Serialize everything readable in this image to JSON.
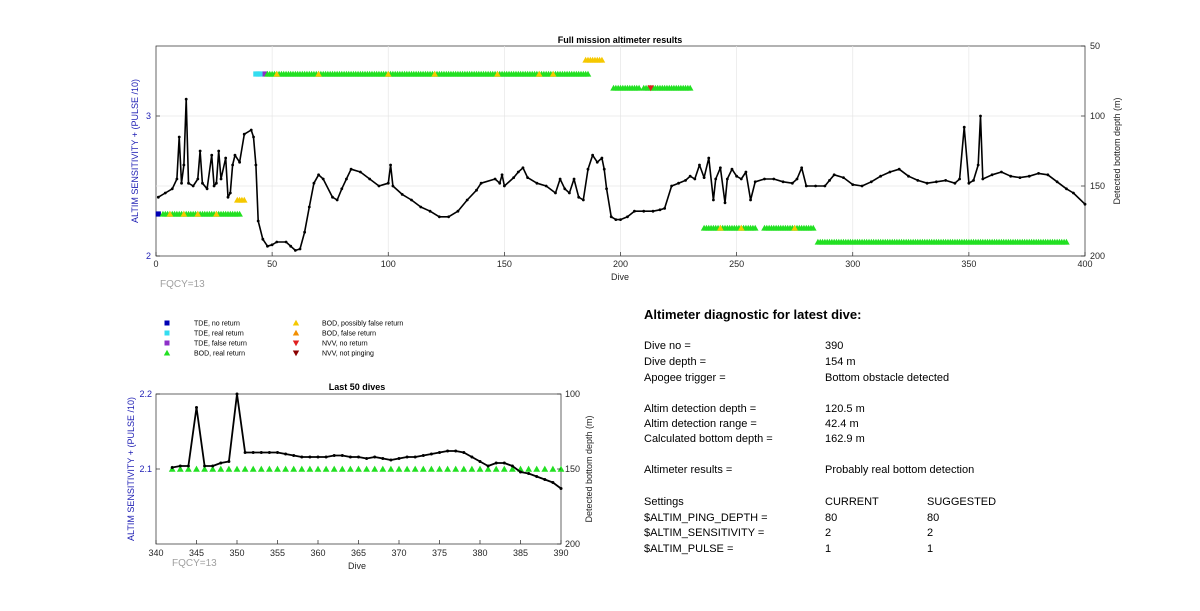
{
  "chart_data": [
    {
      "type": "line",
      "title": "Full mission altimeter results",
      "xlabel": "Dive",
      "ylabel_left": "ALTIM SENSITIVITY + (PULSE /10)",
      "ylabel_right": "Detected bottom depth (m)",
      "xlim": [
        0,
        400
      ],
      "ylim_left": [
        2,
        3.5
      ],
      "ylim_right": [
        50,
        200
      ],
      "right_axis_reversed": true,
      "xticks": [
        "0",
        "50",
        "100",
        "150",
        "200",
        "250",
        "300",
        "350",
        "400"
      ],
      "yticks_left": [
        "2",
        "3"
      ],
      "yticks_right": [
        "50",
        "100",
        "150",
        "200"
      ],
      "grid": true,
      "annotation": "FQCY=13",
      "depth_series_keypoints": [
        [
          1,
          158
        ],
        [
          4,
          155
        ],
        [
          7,
          152
        ],
        [
          9,
          145
        ],
        [
          10,
          115
        ],
        [
          11,
          148
        ],
        [
          12,
          135
        ],
        [
          13,
          88
        ],
        [
          14,
          148
        ],
        [
          16,
          150
        ],
        [
          18,
          145
        ],
        [
          19,
          125
        ],
        [
          20,
          148
        ],
        [
          22,
          152
        ],
        [
          24,
          128
        ],
        [
          25,
          150
        ],
        [
          26,
          148
        ],
        [
          27,
          125
        ],
        [
          28,
          145
        ],
        [
          30,
          130
        ],
        [
          31,
          158
        ],
        [
          32,
          155
        ],
        [
          33,
          135
        ],
        [
          34,
          128
        ],
        [
          36,
          133
        ],
        [
          38,
          113
        ],
        [
          41,
          110
        ],
        [
          42,
          115
        ],
        [
          43,
          135
        ],
        [
          44,
          175
        ],
        [
          46,
          188
        ],
        [
          48,
          193
        ],
        [
          50,
          192
        ],
        [
          52,
          190
        ],
        [
          56,
          190
        ],
        [
          58,
          193
        ],
        [
          60,
          196
        ],
        [
          62,
          195
        ],
        [
          64,
          183
        ],
        [
          66,
          165
        ],
        [
          68,
          148
        ],
        [
          70,
          142
        ],
        [
          72,
          145
        ],
        [
          76,
          158
        ],
        [
          78,
          160
        ],
        [
          80,
          152
        ],
        [
          82,
          145
        ],
        [
          84,
          138
        ],
        [
          88,
          140
        ],
        [
          92,
          145
        ],
        [
          96,
          150
        ],
        [
          100,
          148
        ],
        [
          101,
          135
        ],
        [
          102,
          150
        ],
        [
          106,
          156
        ],
        [
          110,
          160
        ],
        [
          114,
          165
        ],
        [
          118,
          168
        ],
        [
          122,
          172
        ],
        [
          126,
          172
        ],
        [
          130,
          168
        ],
        [
          134,
          160
        ],
        [
          138,
          153
        ],
        [
          140,
          148
        ],
        [
          146,
          145
        ],
        [
          148,
          148
        ],
        [
          149,
          142
        ],
        [
          150,
          150
        ],
        [
          154,
          144
        ],
        [
          156,
          140
        ],
        [
          158,
          137
        ],
        [
          160,
          144
        ],
        [
          164,
          148
        ],
        [
          168,
          150
        ],
        [
          172,
          155
        ],
        [
          174,
          145
        ],
        [
          176,
          152
        ],
        [
          178,
          155
        ],
        [
          180,
          145
        ],
        [
          182,
          158
        ],
        [
          184,
          160
        ],
        [
          186,
          138
        ],
        [
          188,
          128
        ],
        [
          190,
          133
        ],
        [
          192,
          130
        ],
        [
          193,
          138
        ],
        [
          194,
          152
        ],
        [
          196,
          172
        ],
        [
          198,
          174
        ],
        [
          200,
          174
        ],
        [
          203,
          172
        ],
        [
          206,
          168
        ],
        [
          210,
          168
        ],
        [
          214,
          168
        ],
        [
          217,
          167
        ],
        [
          219,
          166
        ],
        [
          222,
          150
        ],
        [
          225,
          148
        ],
        [
          228,
          146
        ],
        [
          230,
          143
        ],
        [
          232,
          145
        ],
        [
          234,
          135
        ],
        [
          236,
          144
        ],
        [
          238,
          130
        ],
        [
          240,
          160
        ],
        [
          241,
          145
        ],
        [
          243,
          137
        ],
        [
          245,
          162
        ],
        [
          246,
          145
        ],
        [
          248,
          138
        ],
        [
          250,
          143
        ],
        [
          252,
          145
        ],
        [
          254,
          140
        ],
        [
          256,
          160
        ],
        [
          258,
          147
        ],
        [
          262,
          145
        ],
        [
          266,
          145
        ],
        [
          270,
          147
        ],
        [
          274,
          148
        ],
        [
          276,
          145
        ],
        [
          278,
          137
        ],
        [
          280,
          150
        ],
        [
          284,
          150
        ],
        [
          288,
          150
        ],
        [
          290,
          146
        ],
        [
          292,
          142
        ],
        [
          296,
          144
        ],
        [
          300,
          149
        ],
        [
          304,
          150
        ],
        [
          308,
          147
        ],
        [
          312,
          143
        ],
        [
          316,
          140
        ],
        [
          320,
          138
        ],
        [
          324,
          143
        ],
        [
          328,
          146
        ],
        [
          332,
          148
        ],
        [
          336,
          147
        ],
        [
          340,
          146
        ],
        [
          344,
          148
        ],
        [
          346,
          145
        ],
        [
          348,
          108
        ],
        [
          350,
          148
        ],
        [
          352,
          146
        ],
        [
          354,
          135
        ],
        [
          355,
          100
        ],
        [
          356,
          145
        ],
        [
          360,
          142
        ],
        [
          364,
          140
        ],
        [
          368,
          143
        ],
        [
          372,
          144
        ],
        [
          376,
          143
        ],
        [
          380,
          141
        ],
        [
          384,
          142
        ],
        [
          388,
          147
        ],
        [
          392,
          152
        ],
        [
          395,
          155
        ],
        [
          400,
          163
        ]
      ],
      "markers": [
        {
          "type": "TDE, no return",
          "x": [
            1
          ],
          "y": [
            2.3
          ]
        },
        {
          "type": "TDE, real return",
          "x": [
            43,
            44,
            45
          ],
          "y": [
            3.3,
            3.3,
            3.3
          ]
        },
        {
          "type": "TDE, false return",
          "x": [
            47
          ],
          "y": [
            3.3
          ]
        },
        {
          "type": "BOD, real return",
          "runs": [
            [
              3,
              36,
              2.3
            ],
            [
              48,
              186,
              3.3
            ],
            [
              197,
              208,
              3.2
            ],
            [
              210,
              230,
              3.2
            ],
            [
              236,
              258,
              2.2
            ],
            [
              262,
              283,
              2.2
            ],
            [
              285,
              392,
              2.1
            ]
          ]
        },
        {
          "type": "BOD, possibly false return",
          "x": [
            35,
            36,
            37,
            38,
            185,
            186,
            187,
            188,
            189,
            190,
            191,
            192
          ],
          "y": [
            2.4,
            2.4,
            2.4,
            2.4,
            3.4,
            3.4,
            3.4,
            3.4,
            3.4,
            3.4,
            3.4,
            3.4
          ]
        },
        {
          "type": "NVV, no return",
          "x": [
            213
          ],
          "y": [
            3.2
          ]
        }
      ]
    },
    {
      "type": "line",
      "title": "Last 50 dives",
      "xlabel": "Dive",
      "ylabel_left": "ALTIM SENSITIVITY + (PULSE /10)",
      "ylabel_right": "Detected bottom depth (m)",
      "xlim": [
        340,
        390
      ],
      "ylim_left": [
        2.0,
        2.2
      ],
      "ylim_right": [
        100,
        200
      ],
      "right_axis_reversed": true,
      "xticks": [
        "340",
        "345",
        "350",
        "355",
        "360",
        "365",
        "370",
        "375",
        "380",
        "385",
        "390"
      ],
      "yticks_left": [
        "2.1",
        "2.2"
      ],
      "yticks_right": [
        "100",
        "150",
        "200"
      ],
      "annotation": "FQCY=13",
      "x": [
        342,
        343,
        344,
        345,
        346,
        347,
        348,
        349,
        350,
        351,
        352,
        353,
        354,
        355,
        356,
        357,
        358,
        359,
        360,
        361,
        362,
        363,
        364,
        365,
        366,
        367,
        368,
        369,
        370,
        371,
        372,
        373,
        374,
        375,
        376,
        377,
        378,
        379,
        380,
        381,
        382,
        383,
        384,
        385,
        386,
        387,
        388,
        389,
        390
      ],
      "depth": [
        149,
        148,
        148,
        109,
        148,
        148,
        146,
        145,
        100,
        139,
        139,
        139,
        139,
        139,
        140,
        141,
        142,
        142,
        142,
        142,
        141,
        141,
        142,
        142,
        143,
        142,
        143,
        144,
        143,
        142,
        142,
        141,
        140,
        139,
        138,
        138,
        139,
        142,
        145,
        148,
        146,
        146,
        148,
        152,
        153,
        155,
        157,
        159,
        163
      ],
      "markers": [
        {
          "type": "BOD, real return",
          "x": [
            342,
            343,
            344,
            345,
            346,
            347,
            348,
            349,
            350,
            351,
            352,
            353,
            354,
            355,
            356,
            357,
            358,
            359,
            360,
            361,
            362,
            363,
            364,
            365,
            366,
            367,
            368,
            369,
            370,
            371,
            372,
            373,
            374,
            375,
            376,
            377,
            378,
            379,
            380,
            381,
            382,
            383,
            384,
            385,
            386,
            387,
            388,
            389,
            390
          ],
          "y": 2.1
        }
      ]
    }
  ],
  "legend": {
    "left": [
      {
        "label": "TDE, no return",
        "color": "#0000b4",
        "shape": "square"
      },
      {
        "label": "TDE, real return",
        "color": "#33ddf0",
        "shape": "square"
      },
      {
        "label": "TDE, false return",
        "color": "#8e2fc8",
        "shape": "square"
      },
      {
        "label": "BOD, real return",
        "color": "#22e022",
        "shape": "triangle-up"
      }
    ],
    "right": [
      {
        "label": "BOD, possibly false return",
        "color": "#f5c800",
        "shape": "triangle-up"
      },
      {
        "label": "BOD, false return",
        "color": "#f28f00",
        "shape": "triangle-up"
      },
      {
        "label": "NVV, no return",
        "color": "#e02020",
        "shape": "triangle-down"
      },
      {
        "label": "NVV, not pinging",
        "color": "#8a0000",
        "shape": "triangle-down"
      }
    ]
  },
  "diagnostic": {
    "title": "Altimeter diagnostic for latest dive:",
    "dive_no_label": "Dive no =",
    "dive_no": "390",
    "dive_depth_label": "Dive depth =",
    "dive_depth": "154 m",
    "apogee_label": "Apogee trigger =",
    "apogee": "Bottom obstacle detected",
    "altim_det_depth_label": "Altim detection depth =",
    "altim_det_depth": "120.5 m",
    "altim_det_range_label": "Altim detection range =",
    "altim_det_range": "42.4 m",
    "calc_bottom_label": "Calculated bottom depth =",
    "calc_bottom": "162.9 m",
    "results_label": "Altimeter results =",
    "results": "Probably real bottom detection",
    "settings_label": "Settings",
    "current_label": "CURRENT",
    "suggested_label": "SUGGESTED",
    "ping_depth_label": "$ALTIM_PING_DEPTH =",
    "ping_depth_current": "80",
    "ping_depth_suggested": "80",
    "sensitivity_label": "$ALTIM_SENSITIVITY =",
    "sensitivity_current": "2",
    "sensitivity_suggested": "2",
    "pulse_label": "$ALTIM_PULSE =",
    "pulse_current": "1",
    "pulse_suggested": "1"
  }
}
